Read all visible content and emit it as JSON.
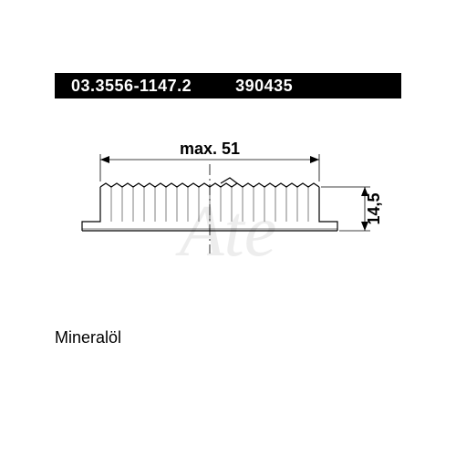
{
  "header": {
    "part_number": "03.3556-1147.2",
    "code": "390435"
  },
  "diagram": {
    "type": "engineering-drawing",
    "width_label": "max. 51",
    "height_label": "14,5",
    "stroke_color": "#000000",
    "stroke_width": 1.2,
    "background": "#ffffff",
    "dim_fontsize": 18,
    "cap": {
      "top_width": 240,
      "bottom_width": 280,
      "height": 48,
      "knurl_count": 20,
      "flange_height": 10
    },
    "watermark_text": "Ate",
    "watermark_color": "#ededed"
  },
  "footer": {
    "note": "Mineralöl"
  }
}
